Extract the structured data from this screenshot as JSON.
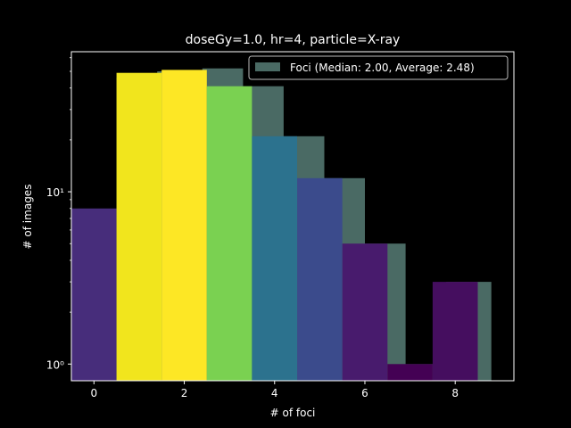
{
  "chart_data": {
    "type": "bar",
    "title": "doseGy=1.0, hr=4, particle=X-ray",
    "xlabel": "# of foci",
    "ylabel": "# of images",
    "yscale": "log",
    "xlim": [
      -0.5,
      9.3
    ],
    "ylim": [
      0.8,
      65
    ],
    "xticks": [
      0,
      2,
      4,
      6,
      8
    ],
    "yticks": [
      {
        "value": 1,
        "label": "10⁰"
      },
      {
        "value": 10,
        "label": "10¹"
      }
    ],
    "legend": {
      "placement": "top-right",
      "entries": [
        "Foci (Median: 2.00, Average: 2.48)"
      ]
    },
    "series": [
      {
        "name": "Foci (Median: 2.00, Average: 2.48)",
        "color": "#4a6a64",
        "bins": [
          {
            "x0": 0.5,
            "x1": 1.4,
            "value": 46
          },
          {
            "x0": 1.4,
            "x1": 2.4,
            "value": 50
          },
          {
            "x0": 2.4,
            "x1": 3.3,
            "value": 52
          },
          {
            "x0": 3.3,
            "x1": 4.2,
            "value": 41
          },
          {
            "x0": 4.2,
            "x1": 5.1,
            "value": 21
          },
          {
            "x0": 5.1,
            "x1": 6.0,
            "value": 12
          },
          {
            "x0": 6.0,
            "x1": 6.9,
            "value": 5
          },
          {
            "x0": 6.9,
            "x1": 7.8,
            "value": 1
          },
          {
            "x0": 7.8,
            "x1": 8.8,
            "value": 3
          }
        ]
      },
      {
        "name": "",
        "bins": [
          {
            "x0": -0.5,
            "x1": 0.5,
            "value": 8,
            "color": "#472d7b"
          },
          {
            "x0": 0.5,
            "x1": 1.5,
            "value": 49,
            "color": "#f1e51d"
          },
          {
            "x0": 1.5,
            "x1": 2.5,
            "value": 51,
            "color": "#fde725"
          },
          {
            "x0": 2.5,
            "x1": 3.5,
            "value": 41,
            "color": "#7ad151"
          },
          {
            "x0": 3.5,
            "x1": 4.5,
            "value": 21,
            "color": "#2c728e"
          },
          {
            "x0": 4.5,
            "x1": 5.5,
            "value": 12,
            "color": "#3b4b8c"
          },
          {
            "x0": 5.5,
            "x1": 6.5,
            "value": 5,
            "color": "#481b6d"
          },
          {
            "x0": 6.5,
            "x1": 7.5,
            "value": 1,
            "color": "#440154"
          },
          {
            "x0": 7.5,
            "x1": 8.5,
            "value": 3,
            "color": "#450e5f"
          }
        ]
      }
    ]
  }
}
